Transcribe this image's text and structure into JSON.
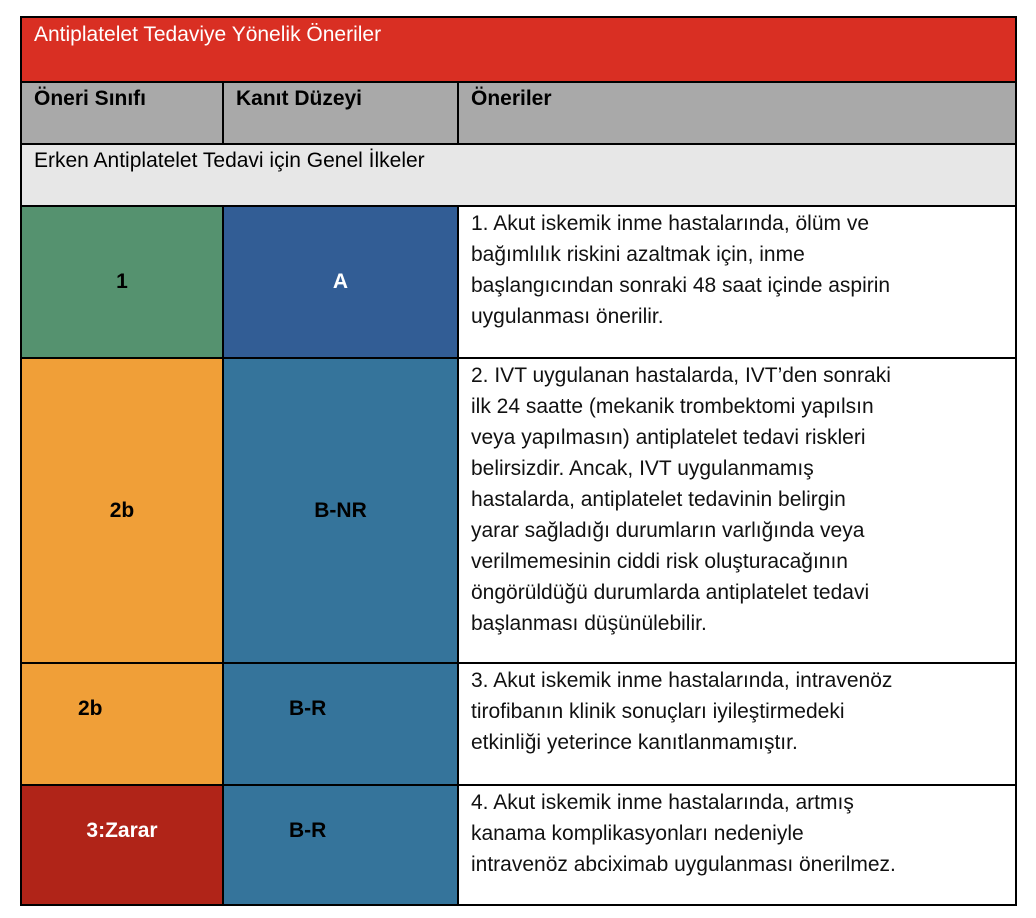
{
  "title": "Antiplatelet Tedaviye Yönelik Öneriler",
  "headers": [
    "Öneri Sınıfı",
    "Kanıt Düzeyi",
    "Öneriler"
  ],
  "section": "Erken Antiplatelet Tedavi için Genel İlkeler",
  "colors": {
    "title_bg": "#d92f23",
    "header_bg": "#a9a9a9",
    "section_bg": "#e7e7e7",
    "class1": "#55926f",
    "class2b": "#f09f38",
    "class3": "#b02418",
    "levelA": "#325d95",
    "levelB": "#35749b"
  },
  "rows": [
    {
      "class": "1",
      "level": "A",
      "text": "1. Akut iskemik inme hastalarında, ölüm ve\nbağımlılık riskini azaltmak için, inme\nbaşlangıcından sonraki 48 saat içinde aspirin\nuygulanması önerilir."
    },
    {
      "class": "2b",
      "level": "B-NR",
      "text": "2. IVT uygulanan hastalarda, IVT’den sonraki\nilk 24 saatte (mekanik trombektomi yapılsın\nveya yapılmasın) antiplatelet tedavi riskleri\nbelirsizdir. Ancak, IVT uygulanmamış\nhastalarda, antiplatelet tedavinin belirgin\nyarar sağladığı durumların varlığında veya\nverilmemesinin ciddi risk oluşturacağının\nöngörüldüğü durumlarda antiplatelet tedavi\nbaşlanması düşünülebilir."
    },
    {
      "class": "2b",
      "level": "B-R",
      "text": "3. Akut iskemik inme hastalarında, intravenöz\ntirofibanın klinik sonuçları iyileştirmedeki\netkinliği yeterince kanıtlanmamıştır."
    },
    {
      "class": "3:Zarar",
      "level": "B-R",
      "text": "4. Akut iskemik inme hastalarında, artmış\nkanama komplikasyonları nedeniyle\nintravenöz abciximab uygulanması önerilmez."
    }
  ]
}
